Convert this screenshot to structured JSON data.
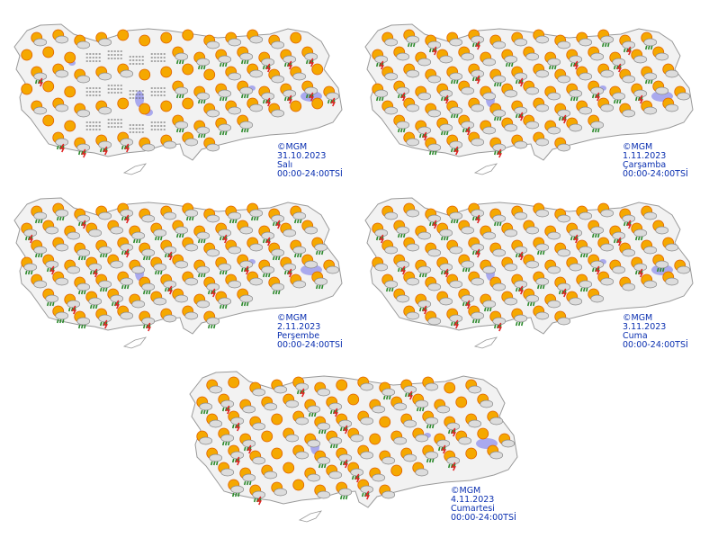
{
  "colors": {
    "land": "#f2f2f2",
    "border": "#9a9a9a",
    "lake": "#a9a9ee",
    "caption": "#0a2fb0",
    "sun": "#f5a800",
    "rain": "#2d8a2d",
    "lightning": "#e02020"
  },
  "panels": [
    {
      "copyright": "©MGM",
      "date": "31.10.2023",
      "day": "Salı",
      "period": "00:00-24:00TSİ",
      "icons": [
        "partly-cloudy",
        "sunny",
        "partly-cloudy",
        "sunny",
        "fog",
        "rain-showers",
        "thunderstorm"
      ]
    },
    {
      "copyright": "©MGM",
      "date": "1.11.2023",
      "day": "Çarşamba",
      "period": "00:00-24:00TSİ",
      "icons": [
        "partly-cloudy",
        "partly-cloudy",
        "rain-showers",
        "partly-cloudy",
        "thunderstorm"
      ]
    },
    {
      "copyright": "©MGM",
      "date": "2.11.2023",
      "day": "Perşembe",
      "period": "00:00-24:00TSİ",
      "icons": [
        "rain-showers",
        "partly-cloudy",
        "rain-showers",
        "partly-cloudy",
        "thunderstorm"
      ]
    },
    {
      "copyright": "©MGM",
      "date": "3.11.2023",
      "day": "Cuma",
      "period": "00:00-24:00TSİ",
      "icons": [
        "partly-cloudy",
        "rain-showers",
        "partly-cloudy",
        "partly-cloudy",
        "thunderstorm"
      ]
    },
    {
      "copyright": "©MGM",
      "date": "4.11.2023",
      "day": "Cumartesi",
      "period": "00:00-24:00TSİ",
      "icons": [
        "partly-cloudy",
        "sunny",
        "partly-cloudy",
        "partly-cloudy",
        "rain-showers",
        "thunderstorm"
      ]
    }
  ]
}
